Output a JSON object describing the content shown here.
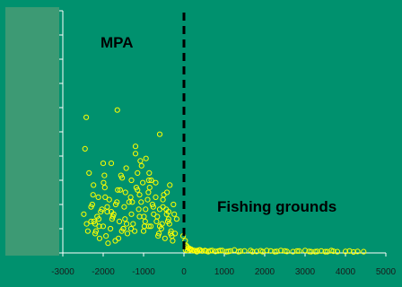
{
  "colors": {
    "background": "#00916e",
    "panel": "#3d9a74",
    "axis": "#ffffff",
    "points": "#ffff00",
    "divider": "#000000",
    "label_text": "#000000",
    "tick_text": "#1a1a1a"
  },
  "chart_data": {
    "type": "scatter",
    "title": "",
    "xlabel": "",
    "ylabel": "",
    "xlim": [
      -3000,
      5000
    ],
    "x_ticks": [
      -3000,
      -2000,
      -1000,
      0,
      1000,
      2000,
      3000,
      4000,
      5000
    ],
    "x_tick_labels": [
      "-3000",
      "-2000",
      "-1000",
      "0",
      "1000",
      "2000",
      "3000",
      "4000",
      "5000"
    ],
    "y_tick_count": 10,
    "ylim": [
      0,
      10
    ],
    "grid": false,
    "divider_x": 0,
    "annotations": [
      {
        "text": "MPA",
        "region": "left of divider, upper"
      },
      {
        "text": "Fishing grounds",
        "region": "right of divider, lower"
      }
    ],
    "series": [
      {
        "marker": "open-circle",
        "x": [
          -2480,
          -2410,
          -2300,
          -2230,
          -2200,
          -2150,
          -2120,
          -2090,
          -2030,
          -2000,
          -1990,
          -1930,
          -1900,
          -1850,
          -1800,
          -1780,
          -1700,
          -1640,
          -1600,
          -1560,
          -1500,
          -1480,
          -1430,
          -1400,
          -1360,
          -1300,
          -1260,
          -1200,
          -1150,
          -1100,
          -1050,
          -1000,
          -940,
          -900,
          -870,
          -810,
          -750,
          -700,
          -640,
          -600,
          -540,
          -470,
          -420,
          -380,
          -320,
          -260,
          -220,
          -180,
          -2350,
          -2250,
          -2180,
          -2060,
          -1960,
          -1880,
          -1740,
          -1660,
          -1530,
          -1460,
          -1320,
          -1220,
          -1120,
          -1020,
          -960,
          -860,
          -780,
          -660,
          -560,
          -500,
          -440,
          -360,
          -300,
          -240,
          -2420,
          -2270,
          -2110,
          -1970,
          -1820,
          -1690,
          -1580,
          -1420,
          -1280,
          -1180,
          -1080,
          -980,
          -880,
          -760,
          -620,
          -520,
          -400,
          -280,
          -2380,
          -2240,
          -2100,
          -1950,
          -1800,
          -1620,
          -1450,
          -1310,
          -1150,
          -990,
          -850,
          -680,
          -520,
          -330,
          -2200,
          -2000,
          -1760,
          -1540,
          -1300,
          -1060,
          -820,
          -600,
          -380,
          -1900,
          -1500,
          -1100,
          -700,
          -430,
          -870,
          -600,
          -2450,
          -1650,
          -950,
          -350,
          -2300,
          -1200,
          -20,
          30,
          60,
          90,
          110,
          150,
          200,
          250,
          320,
          400,
          450,
          520,
          600,
          700,
          780,
          850,
          950,
          1050,
          1150,
          1250,
          1350,
          1500,
          1650,
          1800,
          1950,
          2050,
          2150,
          2250,
          2400,
          2550,
          2700,
          2850,
          3000,
          3150,
          3300,
          3400,
          3500,
          3650,
          3800,
          4100,
          4300,
          4450,
          100,
          140,
          260,
          380,
          550,
          900,
          1400,
          1900,
          2300,
          2800,
          3250,
          3700,
          4000,
          40,
          80,
          180,
          330,
          650,
          1100,
          1700,
          2500,
          3100,
          3550,
          4200
        ],
        "y": [
          1.6,
          1.2,
          1.9,
          1.3,
          0.8,
          1.5,
          2.3,
          0.6,
          1.8,
          1.1,
          2.9,
          0.7,
          1.9,
          2.2,
          3.7,
          1.4,
          0.5,
          2.6,
          1.3,
          3.2,
          1.0,
          1.9,
          3.5,
          0.8,
          2.1,
          3.0,
          1.2,
          4.4,
          2.6,
          1.5,
          3.6,
          0.9,
          3.9,
          2.2,
          1.1,
          3.0,
          1.6,
          2.9,
          0.7,
          4.9,
          1.2,
          0.6,
          2.5,
          1.7,
          0.9,
          2.0,
          0.8,
          1.4,
          3.3,
          2.4,
          0.9,
          1.7,
          2.7,
          0.4,
          1.6,
          2.1,
          3.1,
          1.4,
          2.3,
          0.9,
          1.8,
          2.9,
          1.3,
          3.3,
          2.0,
          1.5,
          1.0,
          2.4,
          1.8,
          1.2,
          0.7,
          1.6,
          5.6,
          2.0,
          1.4,
          3.2,
          1.0,
          2.0,
          2.6,
          1.2,
          2.1,
          2.7,
          3.8,
          1.1,
          2.5,
          1.9,
          0.8,
          2.2,
          1.3,
          0.5,
          0.9,
          2.8,
          1.1,
          2.3,
          1.7,
          0.6,
          2.5,
          1.0,
          3.3,
          1.5,
          2.7,
          1.3,
          1.9,
          0.8,
          1.2,
          3.7,
          1.5,
          0.9,
          1.6,
          2.1,
          1.1,
          1.8,
          1.4,
          1.7,
          1.0,
          2.4,
          2.3,
          1.6,
          3.0,
          1.1,
          4.3,
          5.9,
          1.8,
          2.8,
          1.3,
          4.1,
          0.7,
          0.5,
          0.3,
          0.1,
          0.2,
          0.15,
          0.1,
          0.1,
          0.05,
          0.12,
          0.08,
          0.1,
          0.05,
          0.1,
          0.06,
          0.08,
          0.1,
          0.05,
          0.08,
          0.12,
          0.05,
          0.08,
          0.1,
          0.06,
          0.05,
          0.1,
          0.08,
          0.05,
          0.1,
          0.06,
          0.05,
          0.08,
          0.1,
          0.05,
          0.06,
          0.08,
          0.05,
          0.1,
          0.05,
          0.08,
          0.06,
          0.05,
          0.2,
          0.18,
          0.1,
          0.12,
          0.08,
          0.1,
          0.07,
          0.09,
          0.06,
          0.08,
          0.05,
          0.07,
          0.06,
          0.12,
          0.25,
          0.15,
          0.1,
          0.09,
          0.06,
          0.05,
          0.08,
          0.06,
          0.05,
          0.04
        ]
      }
    ]
  }
}
